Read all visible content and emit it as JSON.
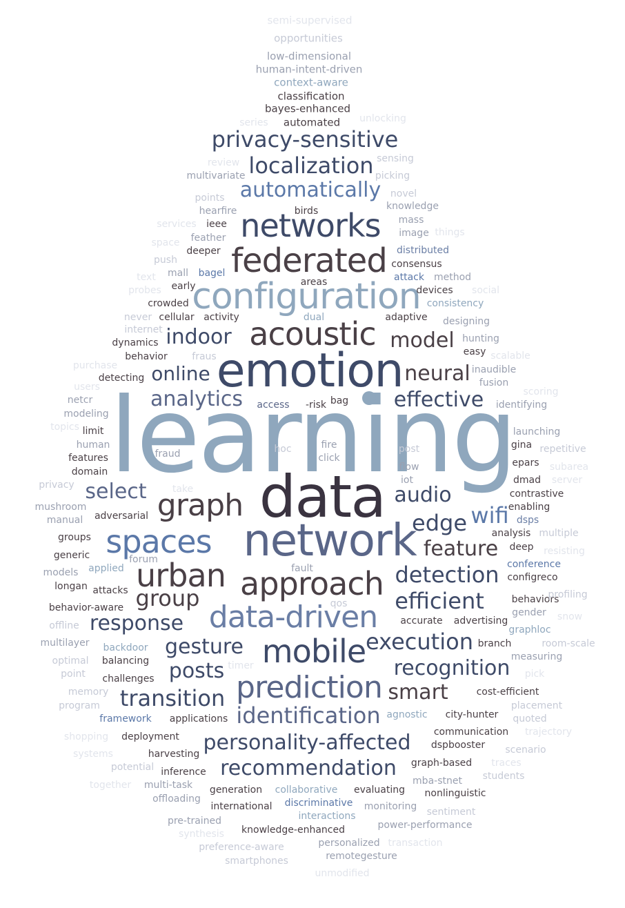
{
  "palette": {
    "c0": "#3a3340",
    "c1": "#3e4a68",
    "c2": "#5a6688",
    "c3": "#8fa7bd",
    "c4": "#6a7ea5",
    "c5": "#4a4046",
    "c6": "#9aa0b0",
    "c7": "#c6cad6",
    "c8": "#e2e5ec",
    "c9": "#5b78a8"
  },
  "words": [
    {
      "text": "learning",
      "color": "c3",
      "name": "word-learning"
    },
    {
      "text": "data",
      "color": "c0",
      "name": "word-data"
    },
    {
      "text": "emotion",
      "color": "c1",
      "name": "word-emotion"
    },
    {
      "text": "network",
      "color": "c2",
      "name": "word-network"
    },
    {
      "text": "configuration",
      "color": "c3",
      "name": "word-configuration"
    },
    {
      "text": "federated",
      "color": "c5",
      "name": "word-federated"
    },
    {
      "text": "networks",
      "color": "c1",
      "name": "word-networks"
    },
    {
      "text": "acoustic",
      "color": "c5",
      "name": "word-acoustic"
    },
    {
      "text": "prediction",
      "color": "c2",
      "name": "word-prediction"
    },
    {
      "text": "approach",
      "color": "c5",
      "name": "word-approach"
    },
    {
      "text": "data-driven",
      "color": "c4",
      "name": "word-data-driven"
    },
    {
      "text": "mobile",
      "color": "c1",
      "name": "word-mobile"
    },
    {
      "text": "urban",
      "color": "c5",
      "name": "word-urban"
    },
    {
      "text": "spaces",
      "color": "c9",
      "name": "word-spaces"
    },
    {
      "text": "graph",
      "color": "c5",
      "name": "word-graph"
    },
    {
      "text": "privacy-sensitive",
      "color": "c1",
      "name": "word-privacy-sensitive"
    },
    {
      "text": "localization",
      "color": "c1",
      "name": "word-localization"
    },
    {
      "text": "automatically",
      "color": "c9",
      "name": "word-automatically"
    },
    {
      "text": "indoor",
      "color": "c1",
      "name": "word-indoor"
    },
    {
      "text": "model",
      "color": "c5",
      "name": "word-model"
    },
    {
      "text": "online",
      "color": "c1",
      "name": "word-online"
    },
    {
      "text": "neural",
      "color": "c5",
      "name": "word-neural"
    },
    {
      "text": "analytics",
      "color": "c2",
      "name": "word-analytics"
    },
    {
      "text": "effective",
      "color": "c1",
      "name": "word-effective"
    },
    {
      "text": "select",
      "color": "c2",
      "name": "word-select"
    },
    {
      "text": "audio",
      "color": "c1",
      "name": "word-audio"
    },
    {
      "text": "wifi",
      "color": "c9",
      "name": "word-wifi"
    },
    {
      "text": "edge",
      "color": "c1",
      "name": "word-edge"
    },
    {
      "text": "feature",
      "color": "c5",
      "name": "word-feature"
    },
    {
      "text": "detection",
      "color": "c1",
      "name": "word-detection"
    },
    {
      "text": "group",
      "color": "c5",
      "name": "word-group"
    },
    {
      "text": "efficient",
      "color": "c1",
      "name": "word-efficient"
    },
    {
      "text": "response",
      "color": "c1",
      "name": "word-response"
    },
    {
      "text": "gesture",
      "color": "c1",
      "name": "word-gesture"
    },
    {
      "text": "execution",
      "color": "c1",
      "name": "word-execution"
    },
    {
      "text": "posts",
      "color": "c1",
      "name": "word-posts"
    },
    {
      "text": "recognition",
      "color": "c1",
      "name": "word-recognition"
    },
    {
      "text": "transition",
      "color": "c1",
      "name": "word-transition"
    },
    {
      "text": "smart",
      "color": "c5",
      "name": "word-smart"
    },
    {
      "text": "identification",
      "color": "c2",
      "name": "word-identification"
    },
    {
      "text": "personality-affected",
      "color": "c1",
      "name": "word-personality-affected"
    },
    {
      "text": "recommendation",
      "color": "c1",
      "name": "word-recommendation"
    },
    {
      "text": "semi-supervised",
      "color": "c8",
      "name": "word-semi-supervised"
    },
    {
      "text": "opportunities",
      "color": "c7",
      "name": "word-opportunities"
    },
    {
      "text": "low-dimensional",
      "color": "c6",
      "name": "word-low-dimensional"
    },
    {
      "text": "human-intent-driven",
      "color": "c6",
      "name": "word-human-intent-driven"
    },
    {
      "text": "context-aware",
      "color": "c3",
      "name": "word-context-aware"
    },
    {
      "text": "classification",
      "color": "c5",
      "name": "word-classification"
    },
    {
      "text": "bayes-enhanced",
      "color": "c5",
      "name": "word-bayes-enhanced"
    },
    {
      "text": "series",
      "color": "c8",
      "name": "word-series"
    },
    {
      "text": "automated",
      "color": "c5",
      "name": "word-automated"
    },
    {
      "text": "unlocking",
      "color": "c8",
      "name": "word-unlocking"
    },
    {
      "text": "review",
      "color": "c8",
      "name": "word-review"
    },
    {
      "text": "sensing",
      "color": "c7",
      "name": "word-sensing"
    },
    {
      "text": "multivariate",
      "color": "c6",
      "name": "word-multivariate"
    },
    {
      "text": "picking",
      "color": "c7",
      "name": "word-picking"
    },
    {
      "text": "points",
      "color": "c7",
      "name": "word-points"
    },
    {
      "text": "novel",
      "color": "c7",
      "name": "word-novel"
    },
    {
      "text": "hearfire",
      "color": "c6",
      "name": "word-hearfire"
    },
    {
      "text": "birds",
      "color": "c5",
      "name": "word-birds"
    },
    {
      "text": "knowledge",
      "color": "c6",
      "name": "word-knowledge"
    },
    {
      "text": "services",
      "color": "c8",
      "name": "word-services"
    },
    {
      "text": "ieee",
      "color": "c5",
      "name": "word-ieee"
    },
    {
      "text": "mass",
      "color": "c6",
      "name": "word-mass"
    },
    {
      "text": "things",
      "color": "c8",
      "name": "word-things"
    },
    {
      "text": "feather",
      "color": "c6",
      "name": "word-feather"
    },
    {
      "text": "image",
      "color": "c6",
      "name": "word-image"
    },
    {
      "text": "space",
      "color": "c8",
      "name": "word-space"
    },
    {
      "text": "deeper",
      "color": "c5",
      "name": "word-deeper"
    },
    {
      "text": "distributed",
      "color": "c4",
      "name": "word-distributed"
    },
    {
      "text": "push",
      "color": "c7",
      "name": "word-push"
    },
    {
      "text": "consensus",
      "color": "c5",
      "name": "word-consensus"
    },
    {
      "text": "text",
      "color": "c8",
      "name": "word-text"
    },
    {
      "text": "mall",
      "color": "c6",
      "name": "word-mall"
    },
    {
      "text": "bagel",
      "color": "c9",
      "name": "word-bagel"
    },
    {
      "text": "attack",
      "color": "c9",
      "name": "word-attack"
    },
    {
      "text": "method",
      "color": "c6",
      "name": "word-method"
    },
    {
      "text": "probes",
      "color": "c8",
      "name": "word-probes"
    },
    {
      "text": "early",
      "color": "c5",
      "name": "word-early"
    },
    {
      "text": "areas",
      "color": "c5",
      "name": "word-areas"
    },
    {
      "text": "devices",
      "color": "c5",
      "name": "word-devices"
    },
    {
      "text": "social",
      "color": "c8",
      "name": "word-social"
    },
    {
      "text": "crowded",
      "color": "c5",
      "name": "word-crowded"
    },
    {
      "text": "consistency",
      "color": "c3",
      "name": "word-consistency"
    },
    {
      "text": "never",
      "color": "c7",
      "name": "word-never"
    },
    {
      "text": "cellular",
      "color": "c5",
      "name": "word-cellular"
    },
    {
      "text": "activity",
      "color": "c5",
      "name": "word-activity"
    },
    {
      "text": "dual",
      "color": "c3",
      "name": "word-dual"
    },
    {
      "text": "adaptive",
      "color": "c5",
      "name": "word-adaptive"
    },
    {
      "text": "designing",
      "color": "c6",
      "name": "word-designing"
    },
    {
      "text": "internet",
      "color": "c7",
      "name": "word-internet"
    },
    {
      "text": "hunting",
      "color": "c6",
      "name": "word-hunting"
    },
    {
      "text": "dynamics",
      "color": "c5",
      "name": "word-dynamics"
    },
    {
      "text": "easy",
      "color": "c5",
      "name": "word-easy"
    },
    {
      "text": "behavior",
      "color": "c5",
      "name": "word-behavior"
    },
    {
      "text": "fraus",
      "color": "c7",
      "name": "word-fraus"
    },
    {
      "text": "scalable",
      "color": "c8",
      "name": "word-scalable"
    },
    {
      "text": "purchase",
      "color": "c8",
      "name": "word-purchase"
    },
    {
      "text": "inaudible",
      "color": "c6",
      "name": "word-inaudible"
    },
    {
      "text": "detecting",
      "color": "c5",
      "name": "word-detecting"
    },
    {
      "text": "fusion",
      "color": "c6",
      "name": "word-fusion"
    },
    {
      "text": "users",
      "color": "c8",
      "name": "word-users"
    },
    {
      "text": "scoring",
      "color": "c8",
      "name": "word-scoring"
    },
    {
      "text": "netcr",
      "color": "c6",
      "name": "word-netcr"
    },
    {
      "text": "access",
      "color": "c2",
      "name": "word-access"
    },
    {
      "text": "-risk",
      "color": "c5",
      "name": "word-risk"
    },
    {
      "text": "bag",
      "color": "c5",
      "name": "word-bag"
    },
    {
      "text": "identifying",
      "color": "c6",
      "name": "word-identifying"
    },
    {
      "text": "modeling",
      "color": "c6",
      "name": "word-modeling"
    },
    {
      "text": "topics",
      "color": "c8",
      "name": "word-topics"
    },
    {
      "text": "limit",
      "color": "c5",
      "name": "word-limit"
    },
    {
      "text": "launching",
      "color": "c6",
      "name": "word-launching"
    },
    {
      "text": "human",
      "color": "c6",
      "name": "word-human"
    },
    {
      "text": "fire",
      "color": "c6",
      "name": "word-fire"
    },
    {
      "text": "hoc",
      "color": "c7",
      "name": "word-hoc"
    },
    {
      "text": "post",
      "color": "c7",
      "name": "word-post"
    },
    {
      "text": "gina",
      "color": "c5",
      "name": "word-gina"
    },
    {
      "text": "repetitive",
      "color": "c7",
      "name": "word-repetitive"
    },
    {
      "text": "features",
      "color": "c5",
      "name": "word-features"
    },
    {
      "text": "fraud",
      "color": "c6",
      "name": "word-fraud"
    },
    {
      "text": "click",
      "color": "c6",
      "name": "word-click"
    },
    {
      "text": "flow",
      "color": "c6",
      "name": "word-flow"
    },
    {
      "text": "epars",
      "color": "c5",
      "name": "word-epars"
    },
    {
      "text": "subarea",
      "color": "c8",
      "name": "word-subarea"
    },
    {
      "text": "domain",
      "color": "c5",
      "name": "word-domain"
    },
    {
      "text": "iot",
      "color": "c6",
      "name": "word-iot"
    },
    {
      "text": "dmad",
      "color": "c5",
      "name": "word-dmad"
    },
    {
      "text": "server",
      "color": "c8",
      "name": "word-server"
    },
    {
      "text": "privacy",
      "color": "c7",
      "name": "word-privacy"
    },
    {
      "text": "take",
      "color": "c8",
      "name": "word-take"
    },
    {
      "text": "contrastive",
      "color": "c5",
      "name": "word-contrastive"
    },
    {
      "text": "mushroom",
      "color": "c6",
      "name": "word-mushroom"
    },
    {
      "text": "enabling",
      "color": "c5",
      "name": "word-enabling"
    },
    {
      "text": "manual",
      "color": "c6",
      "name": "word-manual"
    },
    {
      "text": "adversarial",
      "color": "c5",
      "name": "word-adversarial"
    },
    {
      "text": "dsps",
      "color": "c4",
      "name": "word-dsps"
    },
    {
      "text": "groups",
      "color": "c5",
      "name": "word-groups"
    },
    {
      "text": "analysis",
      "color": "c5",
      "name": "word-analysis"
    },
    {
      "text": "multiple",
      "color": "c7",
      "name": "word-multiple"
    },
    {
      "text": "generic",
      "color": "c5",
      "name": "word-generic"
    },
    {
      "text": "forum",
      "color": "c6",
      "name": "word-forum"
    },
    {
      "text": "deep",
      "color": "c5",
      "name": "word-deep"
    },
    {
      "text": "resisting",
      "color": "c8",
      "name": "word-resisting"
    },
    {
      "text": "models",
      "color": "c6",
      "name": "word-models"
    },
    {
      "text": "applied",
      "color": "c3",
      "name": "word-applied"
    },
    {
      "text": "fault",
      "color": "c6",
      "name": "word-fault"
    },
    {
      "text": "conference",
      "color": "c9",
      "name": "word-conference"
    },
    {
      "text": "configreco",
      "color": "c5",
      "name": "word-configreco"
    },
    {
      "text": "longan",
      "color": "c5",
      "name": "word-longan"
    },
    {
      "text": "attacks",
      "color": "c5",
      "name": "word-attacks"
    },
    {
      "text": "behaviors",
      "color": "c5",
      "name": "word-behaviors"
    },
    {
      "text": "profiling",
      "color": "c7",
      "name": "word-profiling"
    },
    {
      "text": "behavior-aware",
      "color": "c5",
      "name": "word-behavior-aware"
    },
    {
      "text": "qos",
      "color": "c7",
      "name": "word-qos"
    },
    {
      "text": "gender",
      "color": "c6",
      "name": "word-gender"
    },
    {
      "text": "snow",
      "color": "c8",
      "name": "word-snow"
    },
    {
      "text": "offline",
      "color": "c7",
      "name": "word-offline"
    },
    {
      "text": "accurate",
      "color": "c5",
      "name": "word-accurate"
    },
    {
      "text": "advertising",
      "color": "c5",
      "name": "word-advertising"
    },
    {
      "text": "graphloc",
      "color": "c3",
      "name": "word-graphloc"
    },
    {
      "text": "multilayer",
      "color": "c6",
      "name": "word-multilayer"
    },
    {
      "text": "backdoor",
      "color": "c3",
      "name": "word-backdoor"
    },
    {
      "text": "branch",
      "color": "c5",
      "name": "word-branch"
    },
    {
      "text": "room-scale",
      "color": "c7",
      "name": "word-room-scale"
    },
    {
      "text": "optimal",
      "color": "c7",
      "name": "word-optimal"
    },
    {
      "text": "balancing",
      "color": "c5",
      "name": "word-balancing"
    },
    {
      "text": "timer",
      "color": "c8",
      "name": "word-timer"
    },
    {
      "text": "measuring",
      "color": "c6",
      "name": "word-measuring"
    },
    {
      "text": "point",
      "color": "c7",
      "name": "word-point"
    },
    {
      "text": "challenges",
      "color": "c5",
      "name": "word-challenges"
    },
    {
      "text": "pick",
      "color": "c8",
      "name": "word-pick"
    },
    {
      "text": "memory",
      "color": "c7",
      "name": "word-memory"
    },
    {
      "text": "cost-efficient",
      "color": "c5",
      "name": "word-cost-efficient"
    },
    {
      "text": "program",
      "color": "c7",
      "name": "word-program"
    },
    {
      "text": "placement",
      "color": "c7",
      "name": "word-placement"
    },
    {
      "text": "framework",
      "color": "c9",
      "name": "word-framework"
    },
    {
      "text": "applications",
      "color": "c5",
      "name": "word-applications"
    },
    {
      "text": "agnostic",
      "color": "c3",
      "name": "word-agnostic"
    },
    {
      "text": "city-hunter",
      "color": "c5",
      "name": "word-city-hunter"
    },
    {
      "text": "quoted",
      "color": "c7",
      "name": "word-quoted"
    },
    {
      "text": "shopping",
      "color": "c8",
      "name": "word-shopping"
    },
    {
      "text": "deployment",
      "color": "c5",
      "name": "word-deployment"
    },
    {
      "text": "communication",
      "color": "c5",
      "name": "word-communication"
    },
    {
      "text": "trajectory",
      "color": "c8",
      "name": "word-trajectory"
    },
    {
      "text": "systems",
      "color": "c8",
      "name": "word-systems"
    },
    {
      "text": "harvesting",
      "color": "c5",
      "name": "word-harvesting"
    },
    {
      "text": "dspbooster",
      "color": "c5",
      "name": "word-dspbooster"
    },
    {
      "text": "scenario",
      "color": "c7",
      "name": "word-scenario"
    },
    {
      "text": "potential",
      "color": "c7",
      "name": "word-potential"
    },
    {
      "text": "inference",
      "color": "c5",
      "name": "word-inference"
    },
    {
      "text": "graph-based",
      "color": "c5",
      "name": "word-graph-based"
    },
    {
      "text": "traces",
      "color": "c8",
      "name": "word-traces"
    },
    {
      "text": "together",
      "color": "c8",
      "name": "word-together"
    },
    {
      "text": "multi-task",
      "color": "c6",
      "name": "word-multi-task"
    },
    {
      "text": "generation",
      "color": "c5",
      "name": "word-generation"
    },
    {
      "text": "collaborative",
      "color": "c3",
      "name": "word-collaborative"
    },
    {
      "text": "evaluating",
      "color": "c5",
      "name": "word-evaluating"
    },
    {
      "text": "mba-stnet",
      "color": "c6",
      "name": "word-mba-stnet"
    },
    {
      "text": "students",
      "color": "c7",
      "name": "word-students"
    },
    {
      "text": "offloading",
      "color": "c6",
      "name": "word-offloading"
    },
    {
      "text": "international",
      "color": "c5",
      "name": "word-international"
    },
    {
      "text": "discriminative",
      "color": "c9",
      "name": "word-discriminative"
    },
    {
      "text": "monitoring",
      "color": "c6",
      "name": "word-monitoring"
    },
    {
      "text": "nonlinguistic",
      "color": "c5",
      "name": "word-nonlinguistic"
    },
    {
      "text": "interactions",
      "color": "c3",
      "name": "word-interactions"
    },
    {
      "text": "sentiment",
      "color": "c7",
      "name": "word-sentiment"
    },
    {
      "text": "pre-trained",
      "color": "c6",
      "name": "word-pre-trained"
    },
    {
      "text": "power-performance",
      "color": "c6",
      "name": "word-power-performance"
    },
    {
      "text": "synthesis",
      "color": "c8",
      "name": "word-synthesis"
    },
    {
      "text": "knowledge-enhanced",
      "color": "c5",
      "name": "word-knowledge-enhanced"
    },
    {
      "text": "personalized",
      "color": "c6",
      "name": "word-personalized"
    },
    {
      "text": "transaction",
      "color": "c8",
      "name": "word-transaction"
    },
    {
      "text": "preference-aware",
      "color": "c7",
      "name": "word-preference-aware"
    },
    {
      "text": "remotegesture",
      "color": "c6",
      "name": "word-remotegesture"
    },
    {
      "text": "smartphones",
      "color": "c7",
      "name": "word-smartphones"
    },
    {
      "text": "unmodified",
      "color": "c8",
      "name": "word-unmodified"
    }
  ]
}
